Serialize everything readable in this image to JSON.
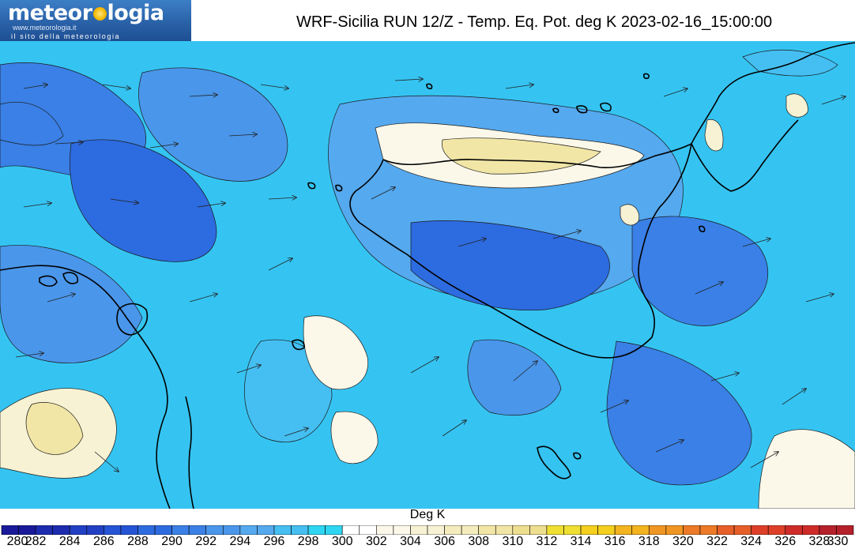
{
  "logo": {
    "word_left": "meteor",
    "word_right": "logia",
    "url": "www.meteorologia.it",
    "tagline": "il sito della meteorologia"
  },
  "title": "WRF-Sicilia RUN 12/Z - Temp. Eq. Pot. deg K 2023-02-16_15:00:00",
  "colorbar": {
    "label": "Deg K",
    "ticks": [
      "280",
      "282",
      "284",
      "286",
      "288",
      "290",
      "292",
      "294",
      "296",
      "298",
      "300",
      "302",
      "304",
      "306",
      "308",
      "310",
      "312",
      "314",
      "316",
      "318",
      "320",
      "322",
      "324",
      "326",
      "328",
      "330"
    ],
    "colors": [
      "#19199a",
      "#1d2cae",
      "#2140c3",
      "#2654d6",
      "#2d6be0",
      "#3a80e6",
      "#4a96ea",
      "#55a9ef",
      "#45bff2",
      "#2fd6f2",
      "#ffffff",
      "#fbf8ea",
      "#f7f2d4",
      "#f4ecbd",
      "#f1e6a6",
      "#eede8f",
      "#f0df33",
      "#f4cf1e",
      "#f3b41f",
      "#f09623",
      "#ec7a26",
      "#e65e28",
      "#de3f28",
      "#cf2b28",
      "#b5202a",
      "#9a1d2a"
    ]
  },
  "colors": {
    "logo_background": "#2a62a8",
    "map_background": "#35c4f2",
    "coast_line": "#000000"
  }
}
